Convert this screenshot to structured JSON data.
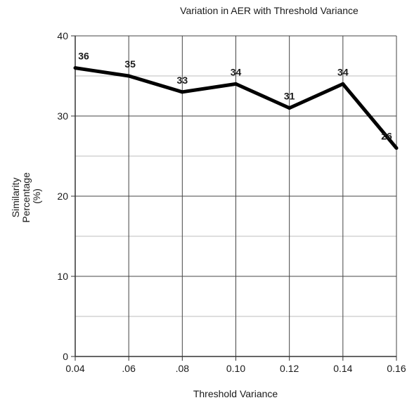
{
  "chart_data": {
    "type": "line",
    "title": "Variation in AER with Threshold Variance",
    "xlabel": "Threshold Variance",
    "ylabel_lines": [
      "Similarity",
      "Percentage",
      "(%)"
    ],
    "x": [
      0.04,
      0.06,
      0.08,
      0.1,
      0.12,
      0.14,
      0.16
    ],
    "x_tick_labels": [
      "0.04",
      ".06",
      ".08",
      "0.10",
      "0.12",
      "0.14",
      "0.16"
    ],
    "series": [
      {
        "values": [
          36,
          35,
          33,
          34,
          31,
          34,
          26
        ],
        "data_labels": [
          "36",
          "35",
          "33",
          "34",
          "31",
          "34",
          "26"
        ]
      }
    ],
    "ylim": [
      0,
      40
    ],
    "y_ticks": [
      0,
      10,
      20,
      30,
      40
    ],
    "y_tick_labels": [
      "0",
      "10",
      "20",
      "30",
      "40"
    ],
    "y_minor_gridlines": [
      5,
      15,
      25,
      35
    ],
    "grid": true,
    "legend": "none",
    "colors": {
      "line": "#000000",
      "major_grid": "#444444",
      "minor_grid": "#bdbdbd",
      "axis": "#333333"
    }
  }
}
